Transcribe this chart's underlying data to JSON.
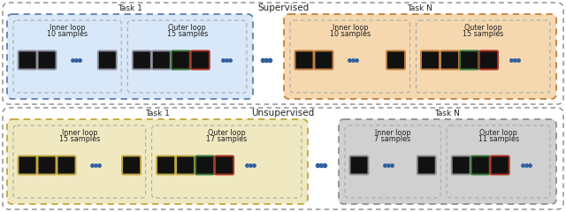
{
  "title_supervised": "Supervised",
  "title_unsupervised": "Unsupervised",
  "font_size_title": 7.5,
  "font_size_task": 6.5,
  "font_size_label": 5.8,
  "sections": {
    "supervised": {
      "task1": {
        "label": "Task 1",
        "inner_loop": {
          "label": "Inner loop",
          "samples": "10 samples"
        },
        "outer_loop": {
          "label": "Outer loop",
          "samples": "15 samples"
        },
        "bg": "#d8e8f8",
        "border": "#6080b0",
        "sub_border": "#9090a0"
      },
      "taskN": {
        "label": "Task N",
        "inner_loop": {
          "label": "Inner loop",
          "samples": "10 samples"
        },
        "outer_loop": {
          "label": "Outer loop",
          "samples": "15 samples"
        },
        "bg": "#f5d8b0",
        "border": "#c08040",
        "sub_border": "#c08040"
      }
    },
    "unsupervised": {
      "task1": {
        "label": "Task 1",
        "inner_loop": {
          "label": "Inner loop",
          "samples": "15 samples"
        },
        "outer_loop": {
          "label": "Outer loop",
          "samples": "17 samples"
        },
        "bg": "#f0e8c0",
        "border": "#c0a840",
        "sub_border": "#c0a840"
      },
      "taskN": {
        "label": "Task N",
        "inner_loop": {
          "label": "Inner loop",
          "samples": "7 samples"
        },
        "outer_loop": {
          "label": "Outer loop",
          "samples": "11 samples"
        },
        "bg": "#d0d0d0",
        "border": "#909090",
        "sub_border": "#909090"
      }
    }
  }
}
